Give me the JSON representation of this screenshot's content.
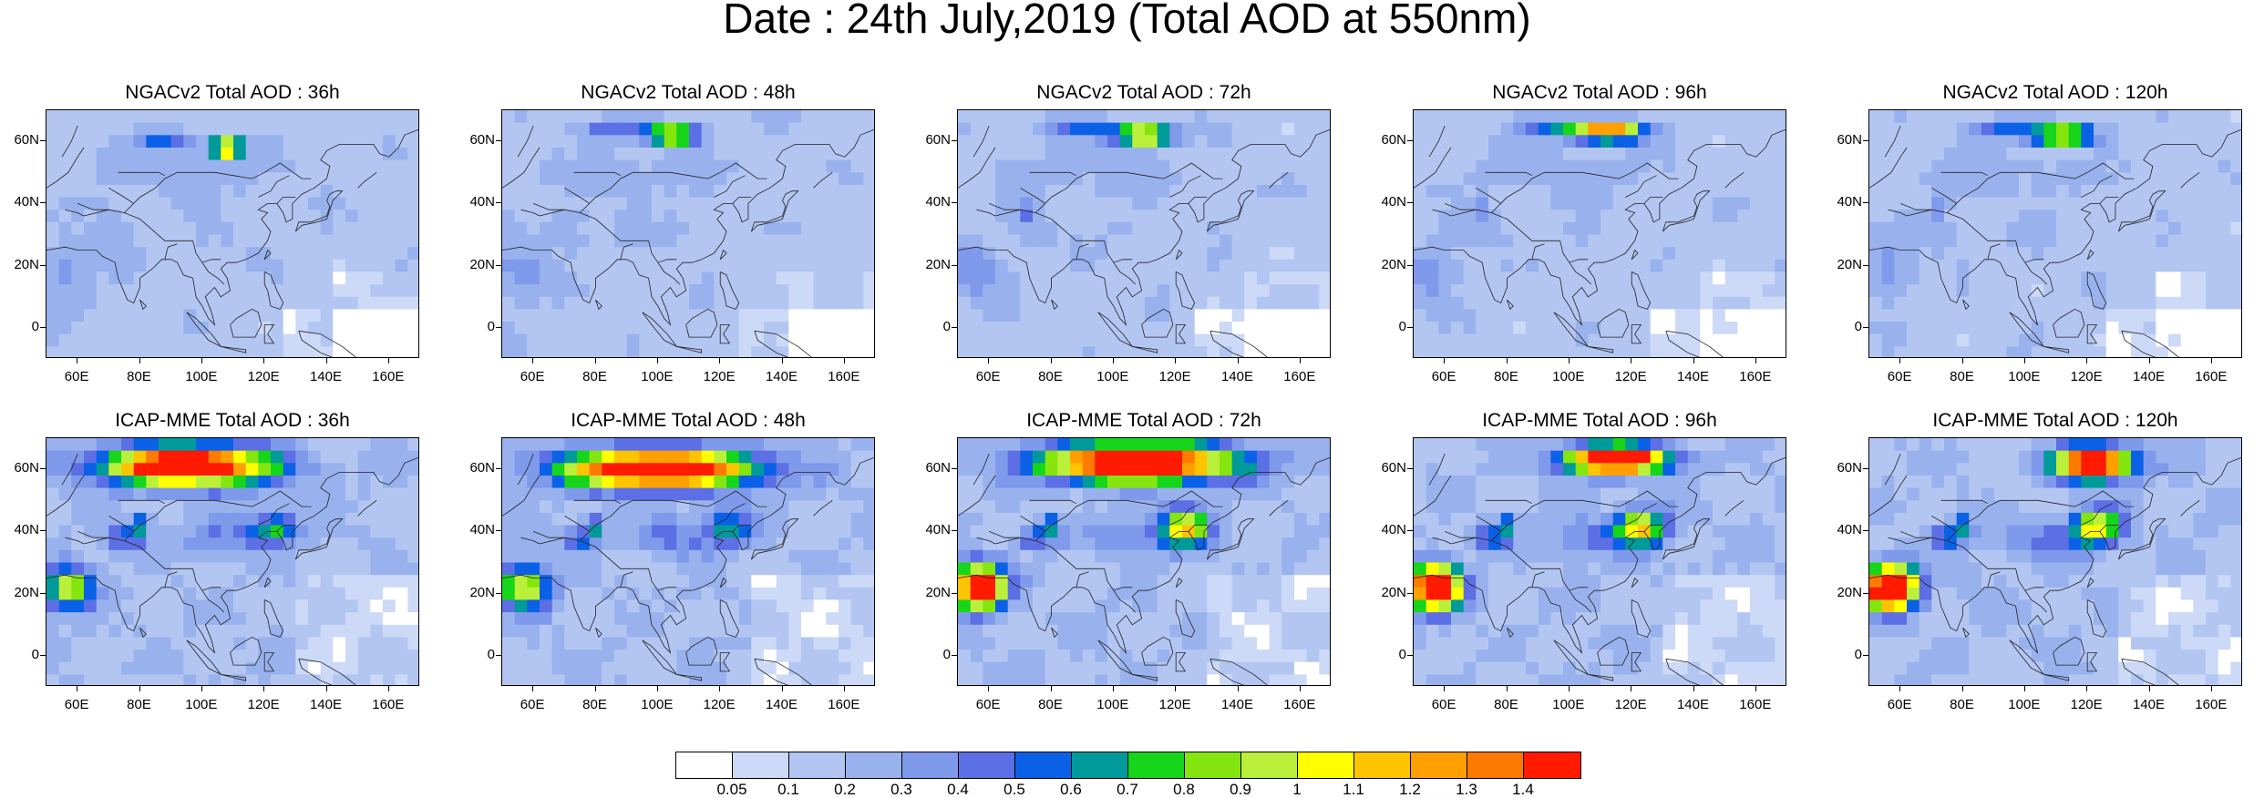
{
  "title": "Date : 24th July,2019 (Total AOD at 550nm)",
  "lat_labels": [
    "60N",
    "40N",
    "20N",
    "0"
  ],
  "lon_labels": [
    "60E",
    "80E",
    "100E",
    "120E",
    "140E",
    "160E"
  ],
  "rows": [
    {
      "model": "NGACv2",
      "panels": [
        {
          "title": "NGACv2 Total AOD : 36h",
          "forecast_hour": "36h"
        },
        {
          "title": "NGACv2 Total AOD : 48h",
          "forecast_hour": "48h"
        },
        {
          "title": "NGACv2 Total AOD : 72h",
          "forecast_hour": "72h"
        },
        {
          "title": "NGACv2 Total AOD : 96h",
          "forecast_hour": "96h"
        },
        {
          "title": "NGACv2 Total AOD : 120h",
          "forecast_hour": "120h"
        }
      ]
    },
    {
      "model": "ICAP-MME",
      "panels": [
        {
          "title": "ICAP-MME Total AOD : 36h",
          "forecast_hour": "36h"
        },
        {
          "title": "ICAP-MME Total AOD : 48h",
          "forecast_hour": "48h"
        },
        {
          "title": "ICAP-MME Total AOD : 72h",
          "forecast_hour": "72h"
        },
        {
          "title": "ICAP-MME Total AOD : 96h",
          "forecast_hour": "96h"
        },
        {
          "title": "ICAP-MME Total AOD : 120h",
          "forecast_hour": "120h"
        }
      ]
    }
  ],
  "colorbar": {
    "labels": [
      "0.05",
      "0.1",
      "0.2",
      "0.3",
      "0.4",
      "0.5",
      "0.6",
      "0.7",
      "0.8",
      "0.9",
      "1",
      "1.1",
      "1.2",
      "1.3",
      "1.4"
    ],
    "colors": [
      "#ffffff",
      "#ccd9f7",
      "#b3c6f2",
      "#99b2ee",
      "#7f99eb",
      "#5d6fe4",
      "#0b61e6",
      "#009a9a",
      "#16d51a",
      "#84e60e",
      "#bbf03a",
      "#ffff00",
      "#ffc400",
      "#ffa000",
      "#ff7a00",
      "#ff1a00"
    ]
  }
}
